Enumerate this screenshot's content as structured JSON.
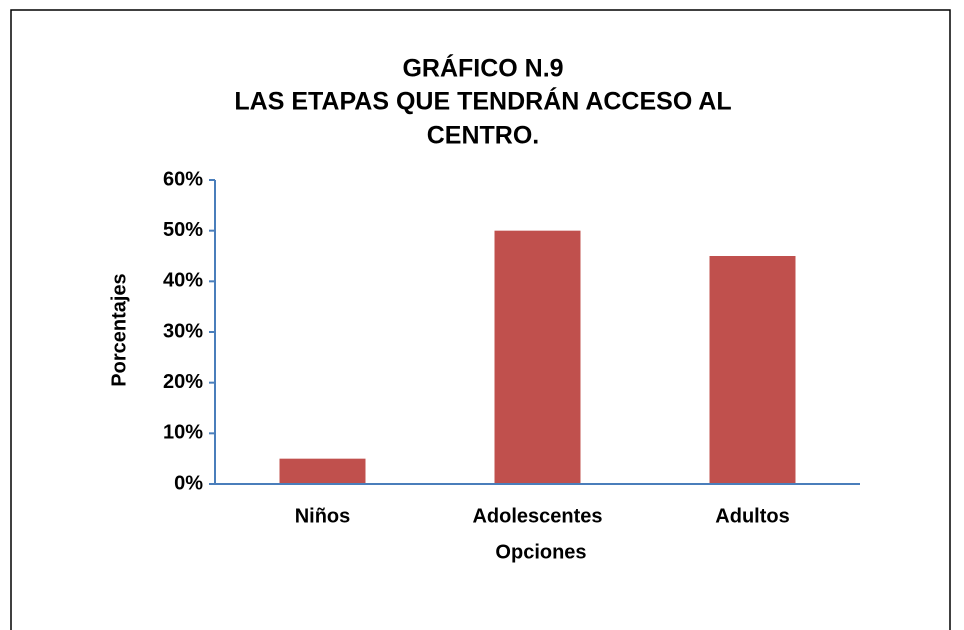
{
  "chart_data": {
    "type": "bar",
    "title": [
      "GRÁFICO N.9",
      "LAS ETAPAS QUE TENDRÁN ACCESO AL",
      "CENTRO."
    ],
    "x_label": "Opciones",
    "y_label": "Porcentajes",
    "categories": [
      "Niños",
      "Adolescentes",
      "Adultos"
    ],
    "values": [
      5,
      50,
      45
    ],
    "color": "#c0504d",
    "ylim": [
      0,
      60
    ],
    "yticks": [
      {
        "value": 0,
        "label": "0%"
      },
      {
        "value": 10,
        "label": "10%"
      },
      {
        "value": 20,
        "label": "20%"
      },
      {
        "value": 30,
        "label": "30%"
      },
      {
        "value": 40,
        "label": "40%"
      },
      {
        "value": 50,
        "label": "50%"
      },
      {
        "value": 60,
        "label": "60%"
      }
    ],
    "grid": false
  }
}
